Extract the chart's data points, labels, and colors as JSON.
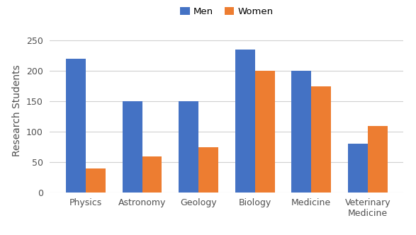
{
  "categories": [
    "Physics",
    "Astronomy",
    "Geology",
    "Biology",
    "Medicine",
    "Veterinary\nMedicine"
  ],
  "men_values": [
    220,
    150,
    150,
    235,
    200,
    80
  ],
  "women_values": [
    40,
    60,
    75,
    200,
    175,
    110
  ],
  "men_color": "#4472C4",
  "women_color": "#ED7D31",
  "ylabel": "Research Students",
  "legend_labels": [
    "Men",
    "Women"
  ],
  "ylim": [
    0,
    270
  ],
  "yticks": [
    0,
    50,
    100,
    150,
    200,
    250
  ],
  "bar_width": 0.35,
  "background_color": "#ffffff",
  "grid_color": "#d0d0d0",
  "legend_fontsize": 9.5,
  "ylabel_fontsize": 10,
  "tick_fontsize": 9
}
